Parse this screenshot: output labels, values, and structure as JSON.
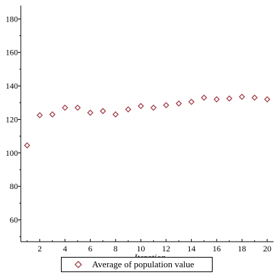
{
  "chart_data": {
    "type": "scatter",
    "title": "",
    "xlabel": "Iteration",
    "ylabel": "",
    "xlim": [
      0.5,
      20.5
    ],
    "ylim": [
      47,
      188
    ],
    "x_ticks": [
      2,
      4,
      6,
      8,
      10,
      12,
      14,
      16,
      18,
      20
    ],
    "y_ticks": [
      60,
      80,
      100,
      120,
      140,
      160,
      180
    ],
    "grid": false,
    "legend_position": "bottom",
    "marker": "diamond",
    "series": [
      {
        "name": "Average of population value",
        "color": "#a0404a",
        "x": [
          1,
          2,
          3,
          4,
          5,
          6,
          7,
          8,
          9,
          10,
          11,
          12,
          13,
          14,
          15,
          16,
          17,
          18,
          19,
          20
        ],
        "y": [
          104.5,
          122.5,
          123,
          127,
          127,
          124,
          125,
          123,
          126,
          128,
          127,
          128.5,
          129.5,
          130.5,
          133,
          132,
          132.5,
          133.5,
          133,
          132
        ]
      }
    ]
  }
}
